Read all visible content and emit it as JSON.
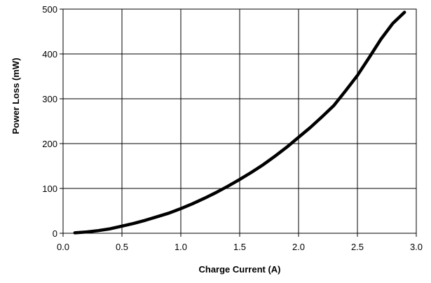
{
  "chart_data": {
    "type": "line",
    "title": "",
    "xlabel": "Charge Current (A)",
    "ylabel": "Power Loss (mW)",
    "xlim": [
      0.0,
      3.0
    ],
    "ylim": [
      0,
      500
    ],
    "x_ticks": [
      "0.0",
      "0.5",
      "1.0",
      "1.5",
      "2.0",
      "2.5",
      "3.0"
    ],
    "y_ticks": [
      "0",
      "100",
      "200",
      "300",
      "400",
      "500"
    ],
    "grid": true,
    "legend": "none",
    "line_color": "#000000",
    "series": [
      {
        "x": [
          0.1,
          0.2,
          0.3,
          0.4,
          0.5,
          0.6,
          0.7,
          0.8,
          0.9,
          1.0,
          1.1,
          1.2,
          1.3,
          1.4,
          1.5,
          1.6,
          1.7,
          1.8,
          1.9,
          2.0,
          2.1,
          2.2,
          2.3,
          2.4,
          2.5,
          2.6,
          2.7,
          2.8,
          2.9
        ],
        "y": [
          1,
          3,
          6,
          10,
          16,
          22,
          29,
          37,
          45,
          55,
          66,
          78,
          91,
          105,
          120,
          136,
          153,
          172,
          192,
          214,
          236,
          260,
          285,
          318,
          352,
          392,
          433,
          468,
          493
        ]
      }
    ]
  }
}
